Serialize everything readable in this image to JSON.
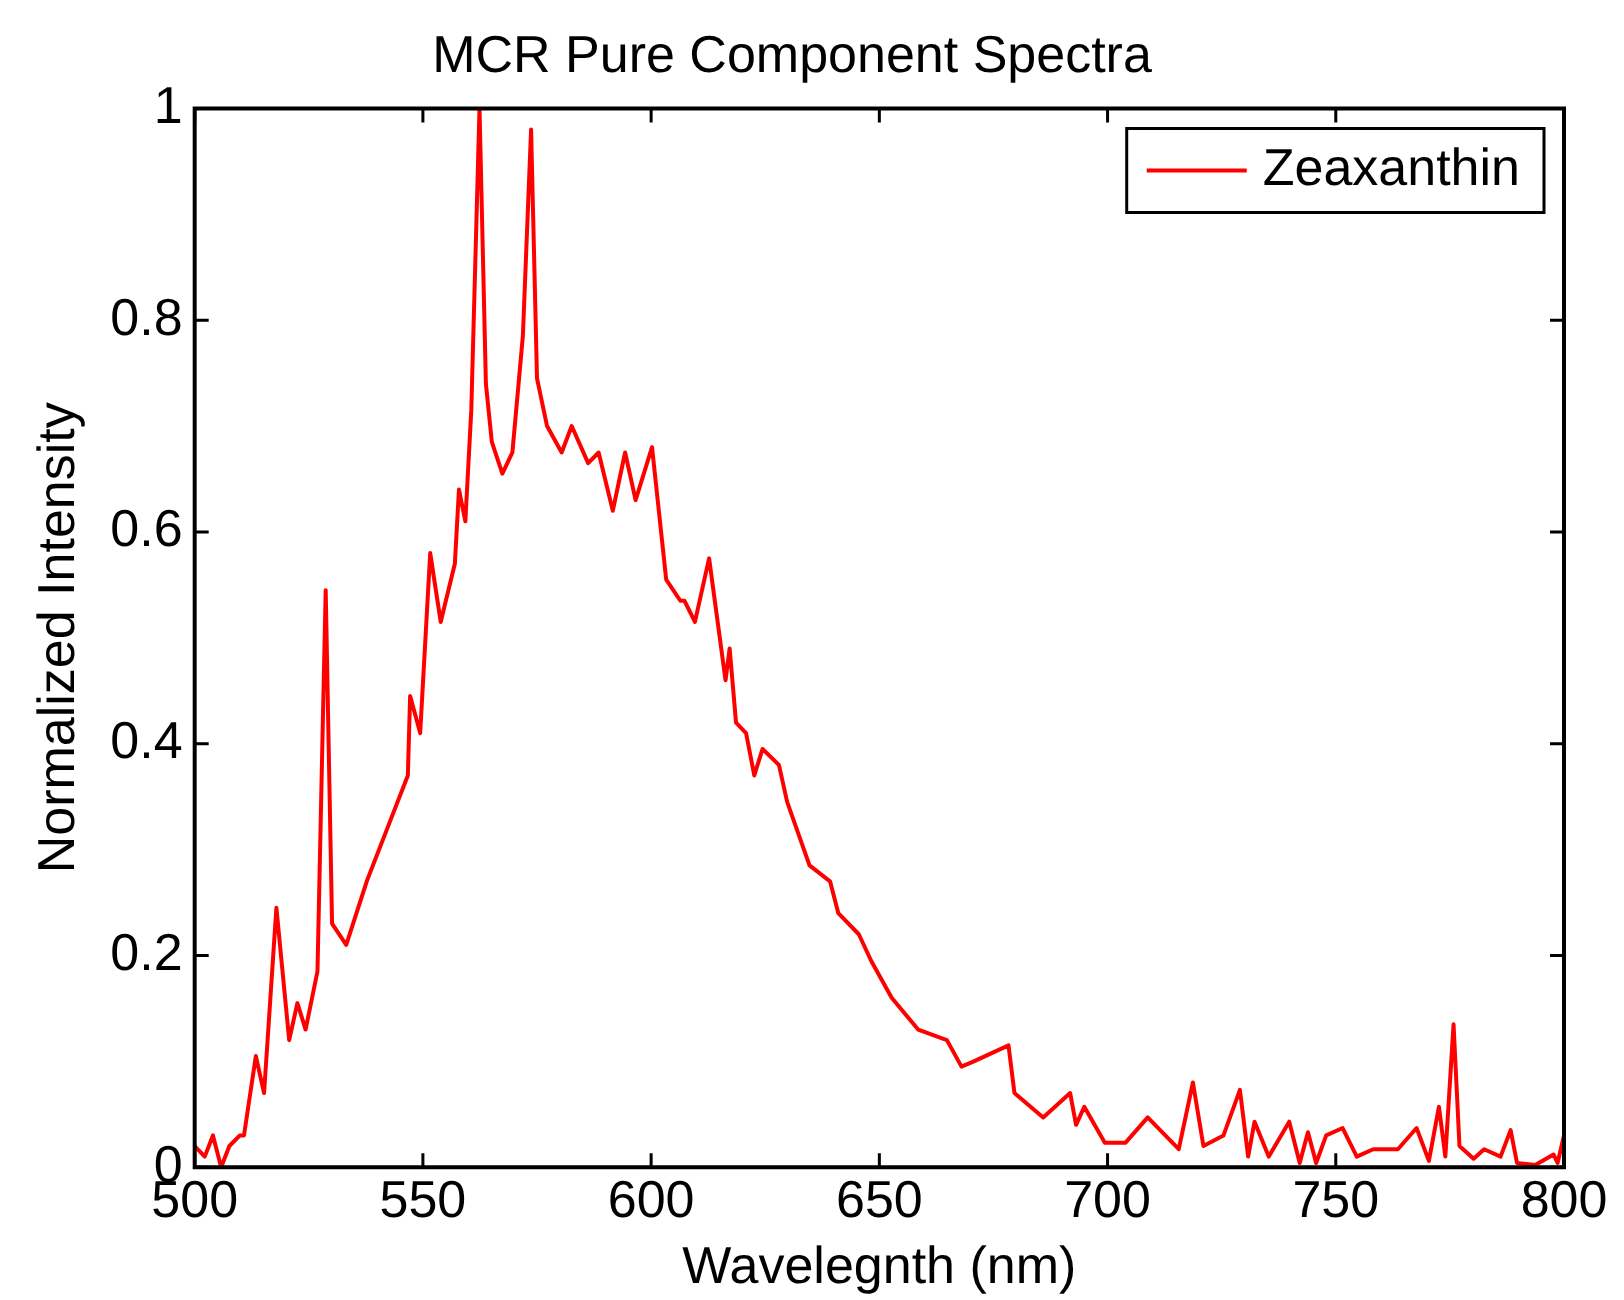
{
  "chart_data": {
    "type": "line",
    "title": "MCR Pure Component Spectra",
    "xlabel": "Wavelegnth (nm)",
    "ylabel": "Normalized Intensity",
    "xlim": [
      500,
      800
    ],
    "xticks": [
      500,
      550,
      600,
      650,
      700,
      750,
      800
    ],
    "ylim": [
      0,
      1
    ],
    "yticks": [
      0,
      0.2,
      0.4,
      0.6,
      0.8,
      1
    ],
    "legend": "top right",
    "grid": false,
    "marker": "none",
    "line_style": "solid",
    "series": [
      {
        "name": "Zeaxanthin",
        "color": "#ff0000",
        "x": [
          500,
          502.2,
          504,
          505.8,
          507.6,
          509.9,
          510.8,
          513.4,
          515.2,
          517.9,
          520.7,
          522.5,
          524.3,
          526.9,
          528.7,
          530.1,
          533.2,
          537.7,
          542.2,
          546.7,
          547.2,
          549.4,
          551.6,
          553.9,
          557,
          557.9,
          559.3,
          560.6,
          562.4,
          563.8,
          565.1,
          567.4,
          569.6,
          571.9,
          573.7,
          575,
          577.2,
          580.4,
          582.6,
          586.2,
          588.5,
          591.6,
          594.3,
          596.6,
          600.2,
          603.3,
          606.4,
          607.3,
          609.6,
          612.7,
          616.3,
          617.2,
          618.6,
          620.8,
          622.6,
          624.4,
          628,
          629.8,
          634.7,
          639.2,
          641,
          645.5,
          648.2,
          652.7,
          658.5,
          664.8,
          668,
          670.7,
          678.3,
          679.6,
          685.9,
          691.8,
          693.1,
          694.9,
          699.4,
          703.9,
          708.8,
          715.6,
          718.7,
          721,
          725.4,
          729,
          730.8,
          732.2,
          735.3,
          739.8,
          742.1,
          743.9,
          745.7,
          747.9,
          751.5,
          754.6,
          758.2,
          763.6,
          767.7,
          770.4,
          772.6,
          774,
          775.8,
          777.1,
          780.2,
          782.5,
          786.1,
          788.3,
          789.7,
          793.7,
          797.7,
          798.6,
          800
        ],
        "values": [
          0.02,
          0.01,
          0.03,
          0,
          0.02,
          0.03,
          0.03,
          0.105,
          0.07,
          0.245,
          0.12,
          0.155,
          0.13,
          0.185,
          0.545,
          0.23,
          0.21,
          0.27,
          0.32,
          0.37,
          0.445,
          0.41,
          0.58,
          0.515,
          0.57,
          0.64,
          0.61,
          0.715,
          1,
          0.74,
          0.685,
          0.655,
          0.675,
          0.785,
          0.98,
          0.745,
          0.7,
          0.675,
          0.7,
          0.665,
          0.675,
          0.62,
          0.675,
          0.63,
          0.68,
          0.555,
          0.535,
          0.535,
          0.515,
          0.575,
          0.46,
          0.49,
          0.42,
          0.41,
          0.37,
          0.395,
          0.38,
          0.345,
          0.285,
          0.27,
          0.24,
          0.22,
          0.195,
          0.16,
          0.13,
          0.12,
          0.095,
          0.1,
          0.115,
          0.07,
          0.047,
          0.07,
          0.04,
          0.057,
          0.023,
          0.023,
          0.047,
          0.017,
          0.08,
          0.02,
          0.03,
          0.073,
          0.01,
          0.043,
          0.01,
          0.043,
          0.004,
          0.033,
          0.004,
          0.03,
          0.037,
          0.01,
          0.017,
          0.017,
          0.037,
          0.006,
          0.057,
          0.01,
          0.135,
          0.02,
          0.008,
          0.017,
          0.01,
          0.035,
          0.004,
          0.002,
          0.012,
          0.004,
          0.03
        ]
      }
    ]
  }
}
